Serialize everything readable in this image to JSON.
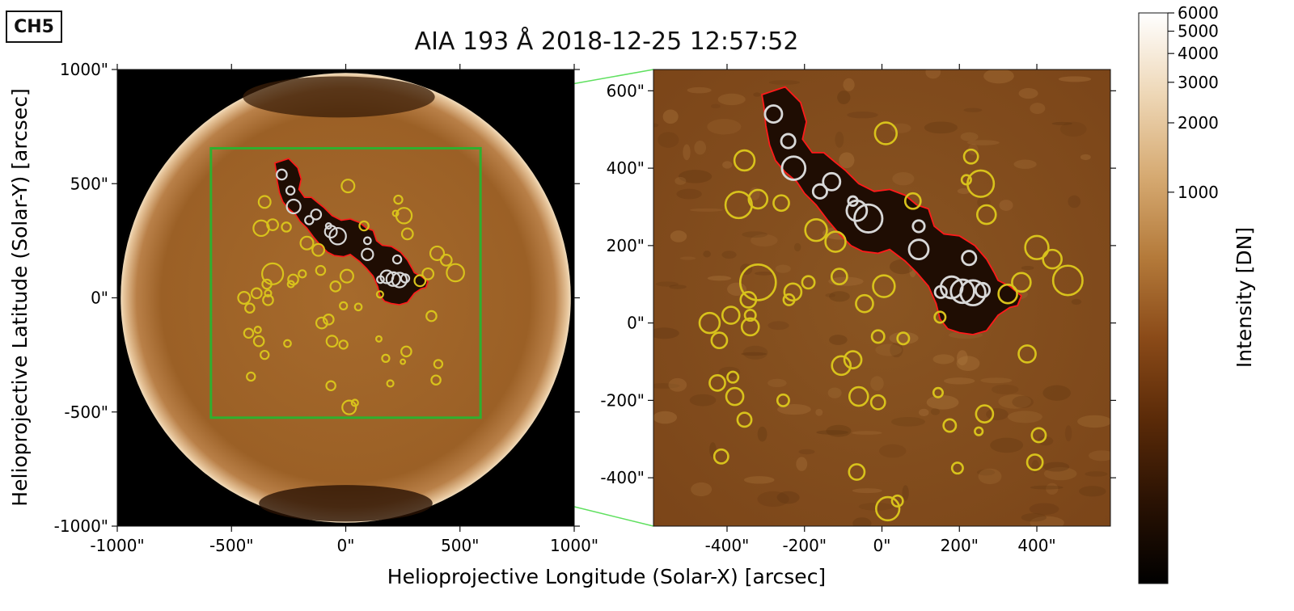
{
  "panel_label": "CH5",
  "title": "AIA 193 Å 2018-12-25 12:57:52",
  "colors": {
    "disk_core": "#a66a2c",
    "disk_edge": "#e6c49a",
    "zoom_bg": "#7f4a1c",
    "coronal_hole": "#1f0d03",
    "contour": "#ff1a1a",
    "circle_yellow": "#d8c21c",
    "circle_white": "#d8d8d8",
    "zoom_box": "#2fb02f",
    "zoom_lines": "#5fe05f"
  },
  "chart_data": [
    {
      "type": "scatter",
      "panel": "full-disk",
      "xlabel": "Helioprojective Longitude (Solar-X) [arcsec]",
      "ylabel": "Helioprojective Latitude (Solar-Y) [arcsec]",
      "xlim": [
        -1000,
        1000
      ],
      "ylim": [
        -1000,
        1000
      ],
      "xticks": [
        -1000,
        -500,
        0,
        500,
        1000
      ],
      "yticks": [
        -1000,
        -500,
        0,
        500,
        1000
      ],
      "xtick_labels": [
        "-1000\"",
        "-500\"",
        "0\"",
        "500\"",
        "1000\""
      ],
      "ytick_labels": [
        "-1000\"",
        "-500\"",
        "0\"",
        "500\"",
        "1000\""
      ],
      "zoom_box": {
        "x": [
          -590,
          590
        ],
        "y": [
          -525,
          655
        ]
      },
      "white_circles": [
        {
          "x": -280,
          "y": 540,
          "r": 22
        },
        {
          "x": -242,
          "y": 470,
          "r": 18
        },
        {
          "x": -228,
          "y": 400,
          "r": 30
        },
        {
          "x": -160,
          "y": 340,
          "r": 18
        },
        {
          "x": -130,
          "y": 365,
          "r": 22
        },
        {
          "x": -75,
          "y": 315,
          "r": 12
        },
        {
          "x": -65,
          "y": 290,
          "r": 26
        },
        {
          "x": -35,
          "y": 270,
          "r": 36
        },
        {
          "x": 95,
          "y": 250,
          "r": 15
        },
        {
          "x": 95,
          "y": 190,
          "r": 25
        },
        {
          "x": 152,
          "y": 80,
          "r": 15
        },
        {
          "x": 180,
          "y": 92,
          "r": 28
        },
        {
          "x": 208,
          "y": 82,
          "r": 30
        },
        {
          "x": 235,
          "y": 78,
          "r": 32
        },
        {
          "x": 225,
          "y": 168,
          "r": 18
        },
        {
          "x": 260,
          "y": 85,
          "r": 18
        }
      ],
      "yellow_circles": [
        {
          "x": 10,
          "y": 490,
          "r": 28
        },
        {
          "x": -355,
          "y": 420,
          "r": 26
        },
        {
          "x": -320,
          "y": 320,
          "r": 24
        },
        {
          "x": -370,
          "y": 305,
          "r": 34
        },
        {
          "x": -260,
          "y": 310,
          "r": 20
        },
        {
          "x": -170,
          "y": 240,
          "r": 28
        },
        {
          "x": -120,
          "y": 210,
          "r": 26
        },
        {
          "x": 80,
          "y": 315,
          "r": 20
        },
        {
          "x": 230,
          "y": 430,
          "r": 18
        },
        {
          "x": 218,
          "y": 370,
          "r": 12
        },
        {
          "x": 255,
          "y": 360,
          "r": 34
        },
        {
          "x": 270,
          "y": 280,
          "r": 24
        },
        {
          "x": 400,
          "y": 195,
          "r": 30
        },
        {
          "x": 440,
          "y": 165,
          "r": 24
        },
        {
          "x": 480,
          "y": 110,
          "r": 38
        },
        {
          "x": 360,
          "y": 105,
          "r": 24
        },
        {
          "x": 325,
          "y": 75,
          "r": 24
        },
        {
          "x": -320,
          "y": 105,
          "r": 46
        },
        {
          "x": -230,
          "y": 80,
          "r": 22
        },
        {
          "x": -190,
          "y": 105,
          "r": 16
        },
        {
          "x": -110,
          "y": 120,
          "r": 20
        },
        {
          "x": 5,
          "y": 95,
          "r": 28
        },
        {
          "x": -45,
          "y": 50,
          "r": 22
        },
        {
          "x": -345,
          "y": 60,
          "r": 20
        },
        {
          "x": -240,
          "y": 60,
          "r": 14
        },
        {
          "x": -390,
          "y": 20,
          "r": 22
        },
        {
          "x": -445,
          "y": 0,
          "r": 26
        },
        {
          "x": -340,
          "y": -10,
          "r": 22
        },
        {
          "x": -420,
          "y": -45,
          "r": 20
        },
        {
          "x": -10,
          "y": -35,
          "r": 16
        },
        {
          "x": 55,
          "y": -40,
          "r": 15
        },
        {
          "x": -75,
          "y": -95,
          "r": 22
        },
        {
          "x": -105,
          "y": -110,
          "r": 24
        },
        {
          "x": -425,
          "y": -155,
          "r": 20
        },
        {
          "x": -385,
          "y": -140,
          "r": 14
        },
        {
          "x": -380,
          "y": -190,
          "r": 22
        },
        {
          "x": -255,
          "y": -200,
          "r": 15
        },
        {
          "x": -355,
          "y": -250,
          "r": 18
        },
        {
          "x": -60,
          "y": -190,
          "r": 24
        },
        {
          "x": -10,
          "y": -205,
          "r": 18
        },
        {
          "x": 145,
          "y": -180,
          "r": 12
        },
        {
          "x": 175,
          "y": -265,
          "r": 16
        },
        {
          "x": 250,
          "y": -280,
          "r": 10
        },
        {
          "x": 265,
          "y": -235,
          "r": 22
        },
        {
          "x": 405,
          "y": -290,
          "r": 18
        },
        {
          "x": 395,
          "y": -360,
          "r": 20
        },
        {
          "x": 195,
          "y": -375,
          "r": 14
        },
        {
          "x": -65,
          "y": -385,
          "r": 20
        },
        {
          "x": -415,
          "y": -345,
          "r": 18
        },
        {
          "x": 40,
          "y": -460,
          "r": 14
        },
        {
          "x": 15,
          "y": -480,
          "r": 30
        },
        {
          "x": 150,
          "y": 15,
          "r": 14
        },
        {
          "x": 375,
          "y": -80,
          "r": 22
        },
        {
          "x": -340,
          "y": 20,
          "r": 14
        }
      ],
      "coronal_hole_contour": [
        [
          -310,
          590
        ],
        [
          -250,
          610
        ],
        [
          -210,
          570
        ],
        [
          -195,
          520
        ],
        [
          -205,
          475
        ],
        [
          -180,
          440
        ],
        [
          -150,
          440
        ],
        [
          -120,
          415
        ],
        [
          -95,
          395
        ],
        [
          -60,
          360
        ],
        [
          -20,
          340
        ],
        [
          20,
          345
        ],
        [
          60,
          330
        ],
        [
          90,
          305
        ],
        [
          120,
          295
        ],
        [
          135,
          250
        ],
        [
          160,
          230
        ],
        [
          200,
          225
        ],
        [
          240,
          200
        ],
        [
          270,
          165
        ],
        [
          290,
          130
        ],
        [
          300,
          110
        ],
        [
          330,
          95
        ],
        [
          360,
          70
        ],
        [
          350,
          45
        ],
        [
          330,
          40
        ],
        [
          300,
          20
        ],
        [
          270,
          -20
        ],
        [
          235,
          -30
        ],
        [
          200,
          -25
        ],
        [
          170,
          -15
        ],
        [
          150,
          10
        ],
        [
          140,
          50
        ],
        [
          120,
          95
        ],
        [
          90,
          130
        ],
        [
          60,
          160
        ],
        [
          20,
          190
        ],
        [
          -10,
          180
        ],
        [
          -50,
          185
        ],
        [
          -80,
          200
        ],
        [
          -110,
          230
        ],
        [
          -140,
          265
        ],
        [
          -170,
          305
        ],
        [
          -200,
          335
        ],
        [
          -220,
          365
        ],
        [
          -250,
          390
        ],
        [
          -275,
          420
        ],
        [
          -290,
          460
        ],
        [
          -300,
          510
        ],
        [
          -305,
          560
        ],
        [
          -310,
          590
        ]
      ]
    },
    {
      "type": "scatter",
      "panel": "zoom",
      "xlim": [
        -590,
        590
      ],
      "ylim": [
        -525,
        655
      ],
      "xticks": [
        -400,
        -200,
        0,
        200,
        400
      ],
      "yticks": [
        -400,
        -200,
        0,
        200,
        400,
        600
      ],
      "xtick_labels": [
        "-400\"",
        "-200\"",
        "0\"",
        "200\"",
        "400\""
      ],
      "ytick_labels": [
        "-400\"",
        "-200\"",
        "0\"",
        "200\"",
        "400\"",
        "600\""
      ]
    },
    {
      "type": "colorbar",
      "label": "Intensity [DN]",
      "scale": "log",
      "range": [
        20,
        6000
      ],
      "ticks": [
        1000,
        2000,
        3000,
        4000,
        5000,
        6000
      ],
      "tick_labels": [
        "1000",
        "2000",
        "3000",
        "4000",
        "5000",
        "6000"
      ],
      "colormap": [
        "#000000",
        "#2a1203",
        "#5a2a08",
        "#8a4a18",
        "#b47a3a",
        "#d6aa72",
        "#eed7b6",
        "#ffffff"
      ]
    }
  ]
}
